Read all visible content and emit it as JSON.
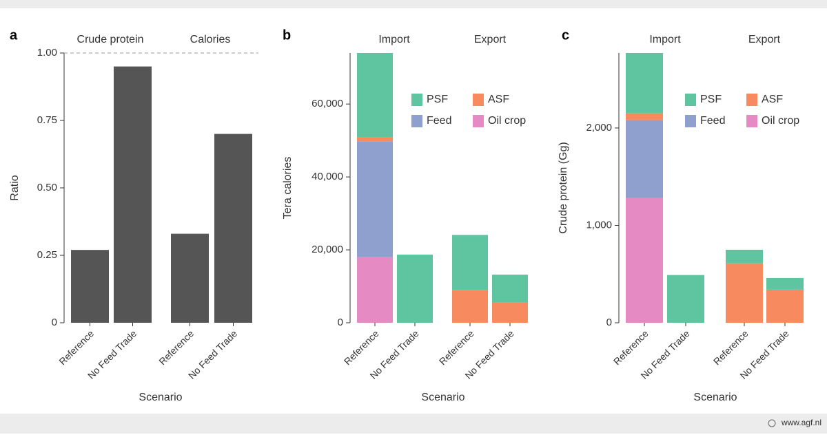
{
  "chart_data": [
    {
      "type": "bar",
      "panel": "a",
      "y_label": "Ratio",
      "x_label": "Scenario",
      "color": "#555555",
      "facets": [
        {
          "name": "Crude protein",
          "categories": [
            "Reference",
            "No Feed Trade"
          ]
        },
        {
          "name": "Calories",
          "categories": [
            "Reference",
            "No Feed Trade"
          ]
        }
      ],
      "values": [
        0.27,
        0.95,
        0.33,
        0.7
      ],
      "ylim": [
        0,
        1
      ],
      "yticks": [
        0,
        0.25,
        {
          "value": 0.5,
          "label": "0.50"
        },
        0.75,
        {
          "value": 1,
          "label": "1.00"
        }
      ],
      "hline": 1
    },
    {
      "type": "stacked-bar",
      "panel": "b",
      "y_label": "Tera calories",
      "x_label": "Scenario",
      "legend": "upper right",
      "facets": [
        {
          "name": "Import",
          "categories": [
            "Reference",
            "No Feed Trade"
          ]
        },
        {
          "name": "Export",
          "categories": [
            "Reference",
            "No Feed Trade"
          ]
        }
      ],
      "series": [
        {
          "name": "Oil crop",
          "color": "#e68ac4",
          "values": [
            18000,
            0,
            0,
            0
          ]
        },
        {
          "name": "Feed",
          "color": "#8fa0cf",
          "values": [
            31800,
            0,
            0,
            0
          ]
        },
        {
          "name": "ASF",
          "color": "#f78a5e",
          "values": [
            1100,
            0,
            9000,
            5500
          ]
        },
        {
          "name": "PSF",
          "color": "#5fc4a0",
          "values": [
            23100,
            18700,
            15100,
            7700
          ]
        }
      ],
      "ylim": [
        0,
        74000
      ],
      "yticks": [
        0,
        {
          "value": 20000,
          "label": "20,000"
        },
        {
          "value": 40000,
          "label": "40,000"
        },
        {
          "value": 60000,
          "label": "60,000"
        }
      ]
    },
    {
      "type": "stacked-bar",
      "panel": "c",
      "y_label": "Crude protein (Gg)",
      "x_label": "Scenario",
      "legend": "upper right",
      "facets": [
        {
          "name": "Import",
          "categories": [
            "Reference",
            "No Feed Trade"
          ]
        },
        {
          "name": "Export",
          "categories": [
            "Reference",
            "No Feed Trade"
          ]
        }
      ],
      "series": [
        {
          "name": "Oil crop",
          "color": "#e68ac4",
          "values": [
            1280,
            0,
            0,
            0
          ]
        },
        {
          "name": "Feed",
          "color": "#8fa0cf",
          "values": [
            800,
            0,
            0,
            0
          ]
        },
        {
          "name": "ASF",
          "color": "#f78a5e",
          "values": [
            70,
            0,
            610,
            340
          ]
        },
        {
          "name": "PSF",
          "color": "#5fc4a0",
          "values": [
            620,
            490,
            140,
            120
          ]
        }
      ],
      "ylim": [
        0,
        2770
      ],
      "yticks": [
        0,
        {
          "value": 1000,
          "label": "1,000"
        },
        {
          "value": 2000,
          "label": "2,000"
        }
      ]
    }
  ],
  "footer": {
    "source": "www.agf.nl"
  }
}
